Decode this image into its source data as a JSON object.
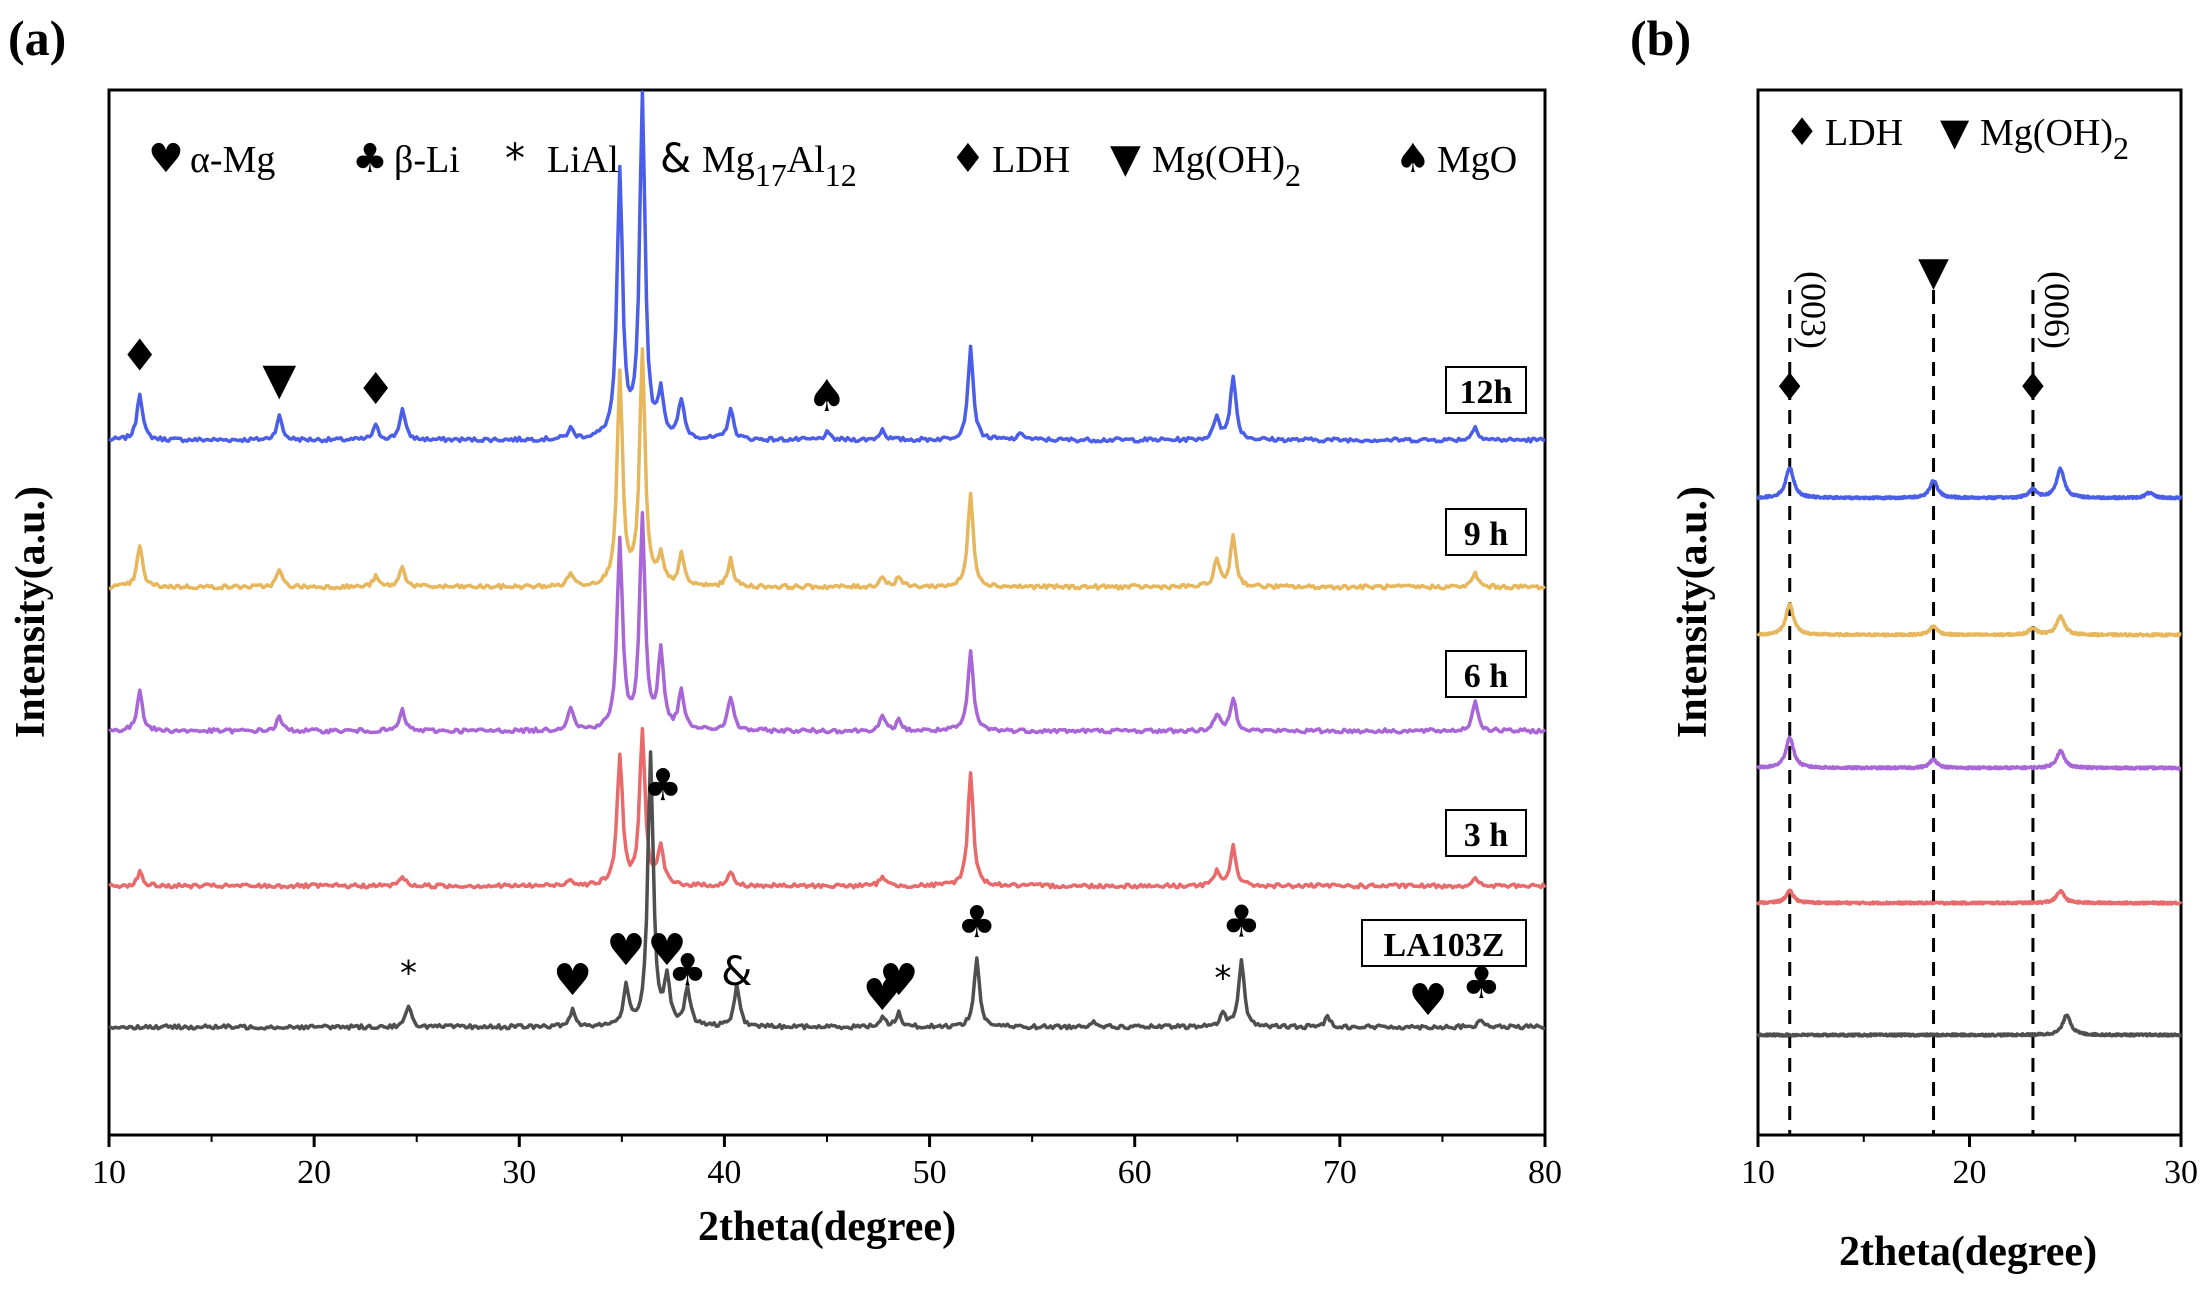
{
  "panels": [
    {
      "panel_label": "(a)",
      "chart_data": {
        "type": "line",
        "xlabel": "2theta(degree)",
        "ylabel": "Intensity(a.u.)",
        "xlim": [
          10,
          80
        ],
        "x_ticks": [
          "10",
          "20",
          "30",
          "40",
          "50",
          "60",
          "70",
          "80"
        ],
        "legend": [
          {
            "symbol": "♥",
            "label": "α-Mg"
          },
          {
            "symbol": "♣",
            "label": "β-Li"
          },
          {
            "symbol": "*",
            "label": "LiAl"
          },
          {
            "symbol": "&",
            "label": "Mg",
            "sub1": "17",
            "mid": "Al",
            "sub2": "12"
          },
          {
            "symbol": "♦",
            "label": "LDH"
          },
          {
            "symbol": "▼",
            "label": "Mg(OH)",
            "sub1": "2"
          },
          {
            "symbol": "♠",
            "label": "MgO"
          }
        ],
        "series": [
          {
            "name": "12h",
            "color": "#4a5ee8",
            "peaks": [
              [
                11.5,
                0.14
              ],
              [
                18.3,
                0.07
              ],
              [
                23.0,
                0.04
              ],
              [
                24.3,
                0.09
              ],
              [
                32.5,
                0.03
              ],
              [
                34.9,
                0.78
              ],
              [
                36.0,
                1.0
              ],
              [
                36.9,
                0.13
              ],
              [
                37.9,
                0.11
              ],
              [
                40.3,
                0.09
              ],
              [
                45.0,
                0.02
              ],
              [
                47.7,
                0.03
              ],
              [
                52.0,
                0.27
              ],
              [
                54.5,
                0.02
              ],
              [
                64.0,
                0.07
              ],
              [
                64.8,
                0.19
              ],
              [
                76.6,
                0.04
              ]
            ]
          },
          {
            "name": "9 h",
            "color": "#e6b75c",
            "peaks": [
              [
                11.5,
                0.12
              ],
              [
                18.3,
                0.05
              ],
              [
                23.0,
                0.03
              ],
              [
                24.3,
                0.06
              ],
              [
                32.5,
                0.04
              ],
              [
                34.9,
                0.62
              ],
              [
                36.0,
                0.68
              ],
              [
                36.9,
                0.08
              ],
              [
                37.9,
                0.09
              ],
              [
                40.3,
                0.08
              ],
              [
                47.7,
                0.03
              ],
              [
                48.5,
                0.03
              ],
              [
                52.0,
                0.27
              ],
              [
                64.0,
                0.08
              ],
              [
                64.8,
                0.15
              ],
              [
                76.6,
                0.04
              ]
            ]
          },
          {
            "name": "6 h",
            "color": "#a866d6",
            "peaks": [
              [
                11.5,
                0.12
              ],
              [
                18.3,
                0.04
              ],
              [
                24.3,
                0.06
              ],
              [
                32.5,
                0.07
              ],
              [
                34.9,
                0.55
              ],
              [
                36.0,
                0.62
              ],
              [
                36.9,
                0.23
              ],
              [
                37.9,
                0.11
              ],
              [
                40.3,
                0.1
              ],
              [
                47.7,
                0.04
              ],
              [
                48.5,
                0.03
              ],
              [
                52.0,
                0.23
              ],
              [
                64.0,
                0.05
              ],
              [
                64.8,
                0.1
              ],
              [
                76.6,
                0.09
              ]
            ]
          },
          {
            "name": "3 h",
            "color": "#e86a6a",
            "peaks": [
              [
                11.5,
                0.04
              ],
              [
                24.3,
                0.03
              ],
              [
                32.5,
                0.02
              ],
              [
                34.9,
                0.38
              ],
              [
                36.0,
                0.45
              ],
              [
                36.9,
                0.11
              ],
              [
                40.3,
                0.04
              ],
              [
                47.7,
                0.03
              ],
              [
                52.0,
                0.33
              ],
              [
                64.0,
                0.04
              ],
              [
                64.8,
                0.12
              ],
              [
                76.6,
                0.02
              ]
            ]
          },
          {
            "name": "LA103Z",
            "color": "#4f4f4f",
            "peaks": [
              [
                24.6,
                0.06
              ],
              [
                32.6,
                0.05
              ],
              [
                35.2,
                0.11
              ],
              [
                36.4,
                0.8
              ],
              [
                37.2,
                0.13
              ],
              [
                38.2,
                0.11
              ],
              [
                40.6,
                0.12
              ],
              [
                47.7,
                0.03
              ],
              [
                48.5,
                0.04
              ],
              [
                52.3,
                0.2
              ],
              [
                58.0,
                0.02
              ],
              [
                64.3,
                0.04
              ],
              [
                65.2,
                0.2
              ],
              [
                69.4,
                0.03
              ],
              [
                76.9,
                0.02
              ]
            ]
          }
        ],
        "annotations": [
          {
            "symbol": "♦",
            "x": 11.5,
            "series": "12h"
          },
          {
            "symbol": "▼",
            "x": 18.3,
            "series": "12h"
          },
          {
            "symbol": "♦",
            "x": 23.0,
            "series": "12h"
          },
          {
            "symbol": "♠",
            "x": 45.0,
            "series": "12h"
          },
          {
            "symbol": "♣",
            "x": 37.0,
            "series": "3 h"
          },
          {
            "symbol": "*",
            "x": 24.6,
            "series": "LA103Z"
          },
          {
            "symbol": "♥",
            "x": 32.6,
            "series": "LA103Z"
          },
          {
            "symbol": "♥",
            "x": 35.2,
            "series": "LA103Z"
          },
          {
            "symbol": "♥",
            "x": 37.2,
            "series": "LA103Z"
          },
          {
            "symbol": "♣",
            "x": 38.2,
            "series": "LA103Z"
          },
          {
            "symbol": "&",
            "x": 40.6,
            "series": "LA103Z"
          },
          {
            "symbol": "♥",
            "x": 47.7,
            "series": "LA103Z"
          },
          {
            "symbol": "♥",
            "x": 48.5,
            "series": "LA103Z"
          },
          {
            "symbol": "♣",
            "x": 52.3,
            "series": "LA103Z"
          },
          {
            "symbol": "*",
            "x": 64.3,
            "series": "LA103Z"
          },
          {
            "symbol": "♣",
            "x": 65.2,
            "series": "LA103Z"
          },
          {
            "symbol": "♥",
            "x": 74.3,
            "series": "LA103Z"
          },
          {
            "symbol": "♣",
            "x": 76.9,
            "series": "LA103Z"
          }
        ]
      }
    },
    {
      "panel_label": "(b)",
      "chart_data": {
        "type": "line",
        "xlabel": "2theta(degree)",
        "ylabel": "Intensity(a.u.)",
        "xlim": [
          10,
          30
        ],
        "x_ticks": [
          "10",
          "20",
          "30"
        ],
        "legend": [
          {
            "symbol": "♦",
            "label": "LDH"
          },
          {
            "symbol": "▼",
            "label": "Mg(OH)",
            "sub1": "2"
          }
        ],
        "series": [
          {
            "name": "12h",
            "color": "#4a5ee8",
            "peaks": [
              [
                11.5,
                0.18
              ],
              [
                18.3,
                0.1
              ],
              [
                23.0,
                0.05
              ],
              [
                24.3,
                0.17
              ],
              [
                28.5,
                0.03
              ]
            ]
          },
          {
            "name": "9 h",
            "color": "#e6b75c",
            "peaks": [
              [
                11.5,
                0.18
              ],
              [
                18.3,
                0.05
              ],
              [
                23.0,
                0.04
              ],
              [
                24.3,
                0.11
              ]
            ]
          },
          {
            "name": "6 h",
            "color": "#a866d6",
            "peaks": [
              [
                11.5,
                0.18
              ],
              [
                18.3,
                0.05
              ],
              [
                24.3,
                0.1
              ]
            ]
          },
          {
            "name": "3 h",
            "color": "#e86a6a",
            "peaks": [
              [
                11.5,
                0.07
              ],
              [
                24.3,
                0.07
              ]
            ]
          },
          {
            "name": "LA103Z",
            "color": "#4f4f4f",
            "peaks": [
              [
                24.6,
                0.12
              ]
            ]
          }
        ],
        "reference_lines": [
          {
            "x": 11.5,
            "symbol": "♦",
            "label": "(003)"
          },
          {
            "x": 18.3,
            "symbol": "▼",
            "label": ""
          },
          {
            "x": 23.0,
            "symbol": "♦",
            "label": "(006)"
          }
        ]
      }
    }
  ]
}
